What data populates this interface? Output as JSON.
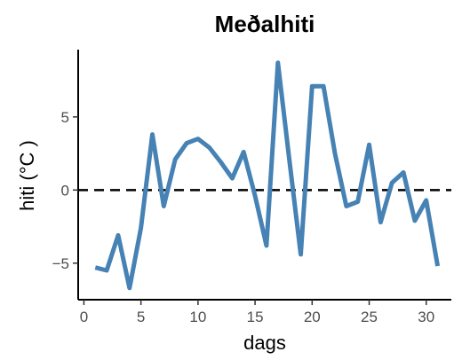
{
  "chart_data": {
    "type": "line",
    "title": "Meðalhiti",
    "xlabel": "dags",
    "ylabel": "hiti (°C )",
    "xlim": [
      -0.5,
      32.2
    ],
    "ylim": [
      -7.5,
      9.6
    ],
    "x_ticks": [
      0,
      5,
      10,
      15,
      20,
      25,
      30
    ],
    "y_ticks": [
      -5,
      0,
      5
    ],
    "y_tick_labels": [
      "−5",
      "0",
      "5"
    ],
    "reference_line": {
      "y": 0,
      "style": "dashed",
      "color": "#000000"
    },
    "grid": false,
    "legend": "none",
    "series": [
      {
        "color": "#4682b4",
        "x": [
          1,
          2,
          3,
          4,
          5,
          6,
          7,
          8,
          9,
          10,
          11,
          12,
          13,
          14,
          15,
          16,
          17,
          18,
          19,
          20,
          21,
          22,
          23,
          24,
          25,
          26,
          27,
          28,
          29,
          30,
          31
        ],
        "y": [
          -5.3,
          -5.5,
          -3.1,
          -6.7,
          -2.6,
          3.8,
          -1.1,
          2.1,
          3.2,
          3.5,
          2.9,
          1.9,
          0.8,
          2.6,
          -0.4,
          -3.8,
          8.7,
          2.1,
          -4.4,
          7.1,
          7.1,
          2.5,
          -1.1,
          -0.8,
          3.1,
          -2.2,
          0.5,
          1.2,
          -2.1,
          -0.7,
          -5.2
        ]
      }
    ]
  }
}
